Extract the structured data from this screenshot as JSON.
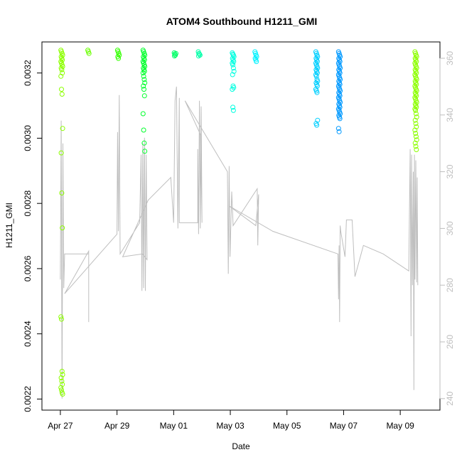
{
  "chart_data": {
    "type": "scatter",
    "title": "ATOM4 Southbound H1211_GMI",
    "xlabel": "Date",
    "ylabel": "H1211_GMI",
    "x_ticks": [
      "Apr 27",
      "Apr 29",
      "May 01",
      "May 03",
      "May 05",
      "May 07",
      "May 09"
    ],
    "x_range_days": [
      -0.45,
      12.85
    ],
    "y_left_ticks": [
      "0.0022",
      "0.0024",
      "0.0026",
      "0.0028",
      "0.0030",
      "0.0032"
    ],
    "y_left_range": [
      0.00219,
      0.00328
    ],
    "y_right_ticks": [
      "240",
      "260",
      "280",
      "300",
      "320",
      "340",
      "360"
    ],
    "y_right_range": [
      238.7,
      364.0
    ],
    "colors": {
      "line": "#bebebe",
      "right_axis": "#bebebe",
      "groups": [
        "#8cff00",
        "#6aff00",
        "#33ff00",
        "#00ff2b",
        "#00ff66",
        "#00ffa8",
        "#00ffe0",
        "#00f2ff",
        "#00cfff",
        "#0099ff"
      ]
    },
    "point_groups": [
      {
        "day": 0.05,
        "values": [
          0.00327,
          0.003265,
          0.00326,
          0.003255,
          0.00325,
          0.003245,
          0.00324,
          0.003235,
          0.00323,
          0.003225,
          0.00322,
          0.003215,
          0.00321,
          0.0032,
          0.00319,
          0.00315,
          0.003135,
          0.00303,
          0.002955,
          0.002832,
          0.002725,
          0.002452,
          0.002445,
          0.002285,
          0.002275,
          0.002265,
          0.002255,
          0.002245,
          0.002235,
          0.002228,
          0.00222,
          0.002215
        ]
      },
      {
        "day": 1.0,
        "values": [
          0.00327,
          0.003265,
          0.00326
        ]
      },
      {
        "day": 2.05,
        "values": [
          0.00327,
          0.003265,
          0.00326,
          0.003255,
          0.00325,
          0.003245
        ]
      },
      {
        "day": 2.95,
        "values": [
          0.00327,
          0.003265,
          0.00326,
          0.003255,
          0.00325,
          0.003245,
          0.00324,
          0.003235,
          0.00323,
          0.003225,
          0.00322,
          0.003215,
          0.00321,
          0.003205,
          0.0032,
          0.00319,
          0.00318,
          0.00317,
          0.00316,
          0.00315,
          0.00313,
          0.003075,
          0.003025,
          0.002985,
          0.00296
        ]
      },
      {
        "day": 4.05,
        "values": [
          0.003262,
          0.003258,
          0.003255,
          0.00326,
          0.003252
        ]
      },
      {
        "day": 4.9,
        "values": [
          0.003265,
          0.00326,
          0.003258,
          0.003255,
          0.003252
        ]
      },
      {
        "day": 6.1,
        "values": [
          0.003262,
          0.003258,
          0.003255,
          0.00325,
          0.003245,
          0.00324,
          0.003235,
          0.00323,
          0.003225,
          0.003215,
          0.003205,
          0.003195,
          0.00316,
          0.003155,
          0.00315,
          0.003095,
          0.003085
        ]
      },
      {
        "day": 6.9,
        "values": [
          0.003265,
          0.00326,
          0.003255,
          0.00325,
          0.003245,
          0.00324,
          0.003235
        ]
      },
      {
        "day": 9.05,
        "values": [
          0.003265,
          0.00326,
          0.003255,
          0.00325,
          0.003245,
          0.00324,
          0.003235,
          0.00323,
          0.003225,
          0.00322,
          0.003215,
          0.00321,
          0.003205,
          0.0032,
          0.003195,
          0.00319,
          0.00318,
          0.003175,
          0.00317,
          0.003165,
          0.00316,
          0.00315,
          0.003145,
          0.00314,
          0.003055,
          0.003045,
          0.00304
        ]
      },
      {
        "day": 9.85,
        "values": [
          0.003265,
          0.00326,
          0.003255,
          0.00325,
          0.003245,
          0.00324,
          0.003235,
          0.00323,
          0.003225,
          0.00322,
          0.003215,
          0.00321,
          0.003205,
          0.0032,
          0.003195,
          0.00319,
          0.003185,
          0.00318,
          0.003175,
          0.00317,
          0.003165,
          0.00316,
          0.003155,
          0.00315,
          0.003145,
          0.00314,
          0.003135,
          0.00313,
          0.003125,
          0.00312,
          0.003115,
          0.00311,
          0.003105,
          0.0031,
          0.003095,
          0.00309,
          0.003085,
          0.00308,
          0.003075,
          0.00307,
          0.003065,
          0.00306,
          0.00303,
          0.00302
        ]
      },
      {
        "day": 12.55,
        "values": [
          0.003265,
          0.00326,
          0.003255,
          0.00325,
          0.003245,
          0.00324,
          0.003235,
          0.00323,
          0.003225,
          0.00322,
          0.003215,
          0.00321,
          0.003205,
          0.0032,
          0.003195,
          0.00319,
          0.003185,
          0.00318,
          0.003175,
          0.00317,
          0.003165,
          0.00316,
          0.003155,
          0.00315,
          0.003145,
          0.00314,
          0.003135,
          0.00313,
          0.003125,
          0.00312,
          0.003115,
          0.00311,
          0.003105,
          0.0031,
          0.003095,
          0.00309,
          0.003085,
          0.003075,
          0.003065,
          0.003055,
          0.003045,
          0.003035,
          0.003025,
          0.003015,
          0.003005,
          0.002995,
          0.002985,
          0.002975,
          0.002965
        ]
      }
    ],
    "line_series": [
      {
        "day": 0.0,
        "value": 282
      },
      {
        "day": 0.03,
        "value": 338
      },
      {
        "day": 0.06,
        "value": 240
      },
      {
        "day": 0.09,
        "value": 330
      },
      {
        "day": 0.12,
        "value": 279
      },
      {
        "day": 0.15,
        "value": 291
      },
      {
        "day": 1.0,
        "value": 291
      },
      {
        "day": 1.0,
        "value": 267
      },
      {
        "day": 1.0,
        "value": 292
      },
      {
        "day": 0.15,
        "value": 277
      },
      {
        "day": 2.0,
        "value": 298
      },
      {
        "day": 2.02,
        "value": 334
      },
      {
        "day": 2.05,
        "value": 299
      },
      {
        "day": 2.08,
        "value": 347
      },
      {
        "day": 2.11,
        "value": 291
      },
      {
        "day": 2.8,
        "value": 302
      },
      {
        "day": 2.85,
        "value": 326
      },
      {
        "day": 2.88,
        "value": 278
      },
      {
        "day": 2.91,
        "value": 330
      },
      {
        "day": 2.94,
        "value": 279
      },
      {
        "day": 2.97,
        "value": 332
      },
      {
        "day": 3.0,
        "value": 278
      },
      {
        "day": 3.03,
        "value": 326
      },
      {
        "day": 3.06,
        "value": 289
      },
      {
        "day": 2.9,
        "value": 291
      },
      {
        "day": 2.2,
        "value": 290
      },
      {
        "day": 3.1,
        "value": 310
      },
      {
        "day": 3.9,
        "value": 318
      },
      {
        "day": 4.0,
        "value": 302
      },
      {
        "day": 4.05,
        "value": 345
      },
      {
        "day": 4.1,
        "value": 350
      },
      {
        "day": 4.15,
        "value": 300
      },
      {
        "day": 4.2,
        "value": 346
      },
      {
        "day": 4.2,
        "value": 302
      },
      {
        "day": 4.85,
        "value": 302
      },
      {
        "day": 4.85,
        "value": 328
      },
      {
        "day": 4.88,
        "value": 298
      },
      {
        "day": 4.91,
        "value": 345
      },
      {
        "day": 4.94,
        "value": 300
      },
      {
        "day": 4.97,
        "value": 343
      },
      {
        "day": 5.0,
        "value": 302
      },
      {
        "day": 4.95,
        "value": 333
      },
      {
        "day": 4.4,
        "value": 345
      },
      {
        "day": 5.9,
        "value": 320
      },
      {
        "day": 5.93,
        "value": 284
      },
      {
        "day": 5.96,
        "value": 322
      },
      {
        "day": 5.99,
        "value": 290
      },
      {
        "day": 6.05,
        "value": 313
      },
      {
        "day": 6.1,
        "value": 301
      },
      {
        "day": 6.95,
        "value": 314
      },
      {
        "day": 6.97,
        "value": 294
      },
      {
        "day": 7.0,
        "value": 312
      },
      {
        "day": 6.9,
        "value": 301
      },
      {
        "day": 5.95,
        "value": 308
      },
      {
        "day": 7.5,
        "value": 299
      },
      {
        "day": 9.8,
        "value": 291
      },
      {
        "day": 9.82,
        "value": 275
      },
      {
        "day": 9.84,
        "value": 294
      },
      {
        "day": 9.86,
        "value": 267
      },
      {
        "day": 9.88,
        "value": 301
      },
      {
        "day": 9.9,
        "value": 299
      },
      {
        "day": 10.05,
        "value": 290
      },
      {
        "day": 10.1,
        "value": 303
      },
      {
        "day": 10.3,
        "value": 303
      },
      {
        "day": 10.4,
        "value": 283
      },
      {
        "day": 10.7,
        "value": 294
      },
      {
        "day": 11.4,
        "value": 291
      },
      {
        "day": 12.3,
        "value": 285
      },
      {
        "day": 12.35,
        "value": 328
      },
      {
        "day": 12.38,
        "value": 262
      },
      {
        "day": 12.4,
        "value": 326
      },
      {
        "day": 12.43,
        "value": 280
      },
      {
        "day": 12.46,
        "value": 320
      },
      {
        "day": 12.48,
        "value": 243
      },
      {
        "day": 12.5,
        "value": 326
      },
      {
        "day": 12.52,
        "value": 282
      },
      {
        "day": 12.55,
        "value": 324
      },
      {
        "day": 12.58,
        "value": 281
      },
      {
        "day": 12.6,
        "value": 318
      },
      {
        "day": 12.62,
        "value": 280
      }
    ]
  }
}
